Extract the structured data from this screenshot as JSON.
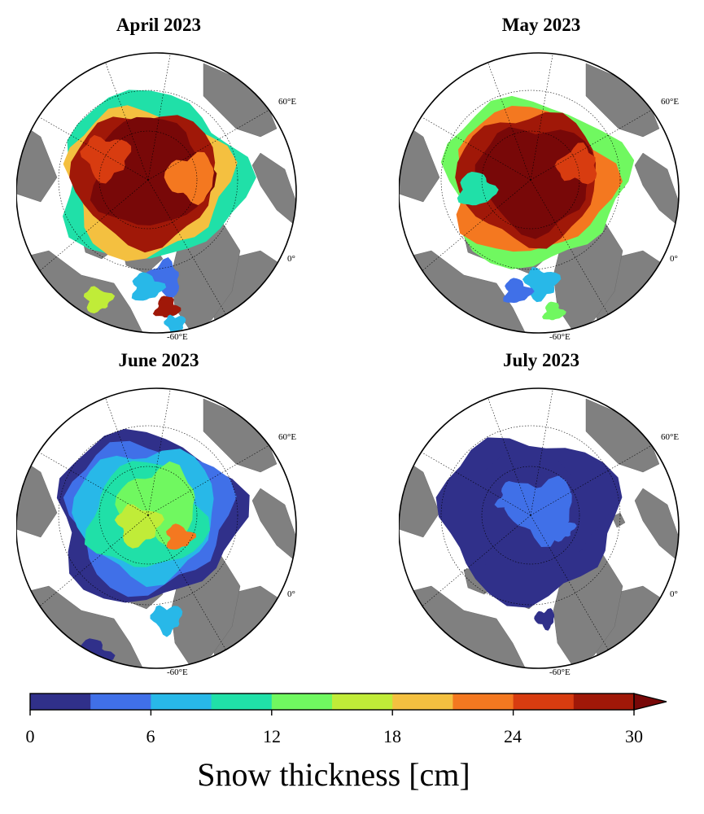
{
  "panels": [
    {
      "title": "April 2023",
      "state": "april"
    },
    {
      "title": "May 2023",
      "state": "may"
    },
    {
      "title": "June 2023",
      "state": "june"
    },
    {
      "title": "July 2023",
      "state": "july"
    }
  ],
  "lon_labels": {
    "east": "60°E",
    "prime": "0°",
    "west": "-60°E"
  },
  "colorbar": {
    "label": "Snow thickness [cm]",
    "ticks": [
      "0",
      "6",
      "12",
      "18",
      "24",
      "30"
    ],
    "min": 0,
    "max": 30,
    "extend": "max",
    "colors": [
      "#30308a",
      "#4070e8",
      "#28b8e8",
      "#20e0a8",
      "#70f860",
      "#c0ec38",
      "#f4c040",
      "#f47820",
      "#d83c10",
      "#a01808",
      "#780808"
    ]
  },
  "colors": {
    "land": "#808080",
    "water": "#ffffff",
    "thick_snow": "#7a0404"
  }
}
